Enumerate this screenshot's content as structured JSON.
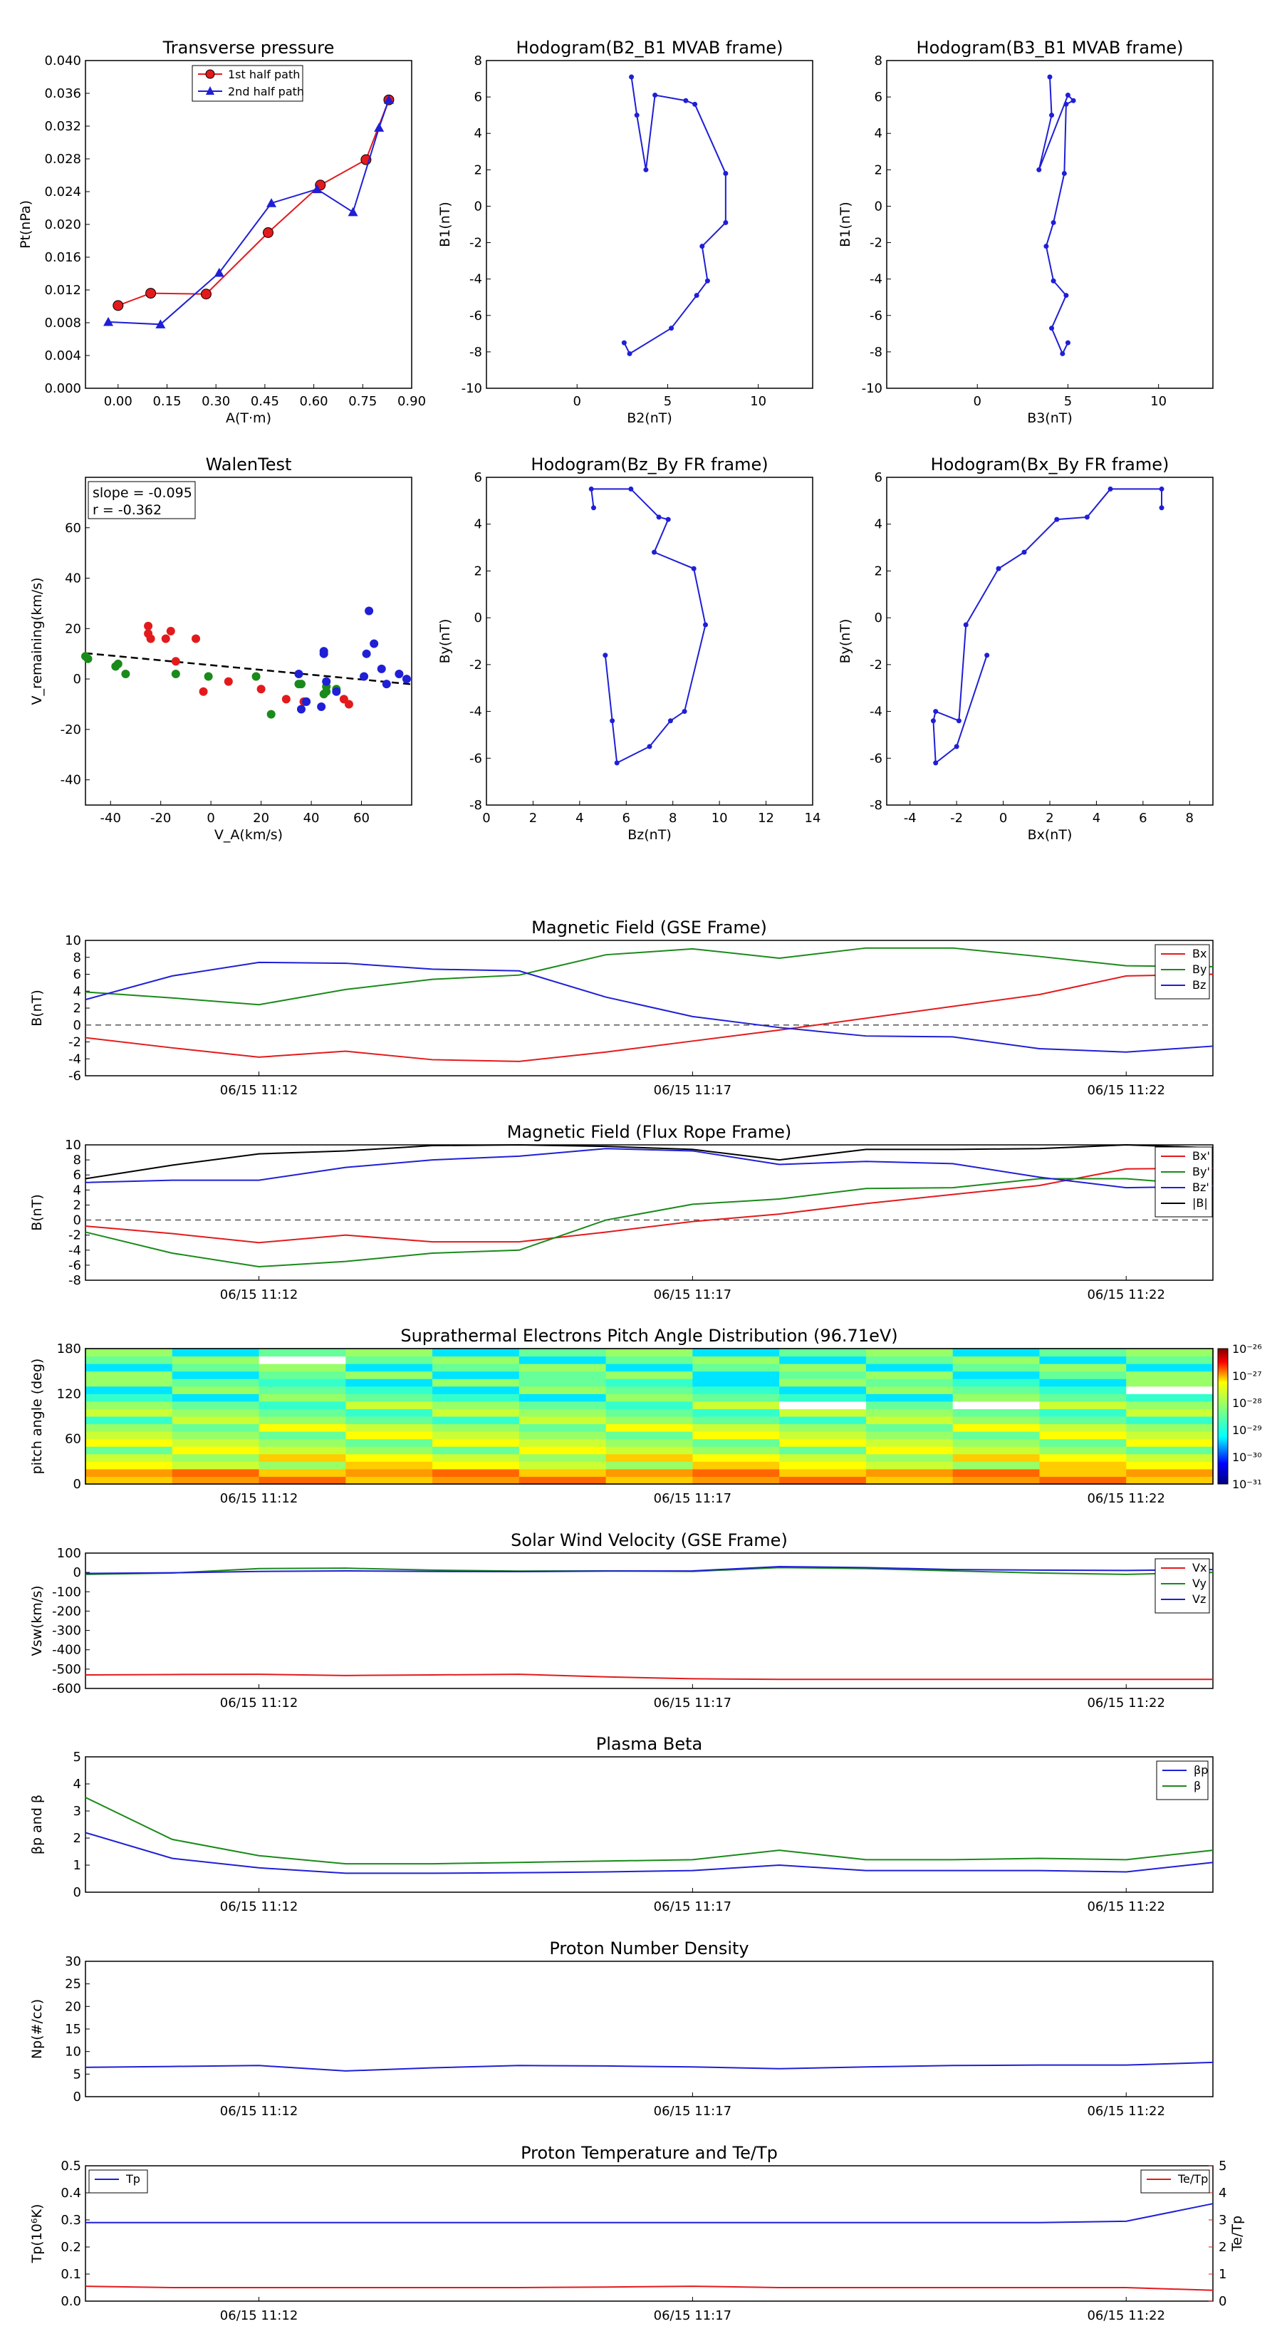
{
  "colors": {
    "red": "#e31a1c",
    "green": "#1a8a1a",
    "blue": "#1f1fd6",
    "black": "#000000"
  },
  "panels": {
    "transverse_pressure": {
      "title": "Transverse pressure",
      "xlabel": "A(T·m)",
      "ylabel": "Pt(nPa)",
      "xlim": [
        -0.1,
        0.9
      ],
      "ylim": [
        0,
        0.04
      ],
      "xticks": [
        "0.00",
        "0.15",
        "0.30",
        "0.45",
        "0.60",
        "0.75",
        "0.90"
      ],
      "yticks": [
        "0.000",
        "0.004",
        "0.008",
        "0.012",
        "0.016",
        "0.020",
        "0.024",
        "0.028",
        "0.032",
        "0.036",
        "0.040"
      ],
      "legend": [
        "1st half path",
        "2nd half path"
      ],
      "series1": {
        "x": [
          0.0,
          0.1,
          0.27,
          0.46,
          0.62,
          0.76,
          0.83
        ],
        "y": [
          0.0101,
          0.0116,
          0.0115,
          0.019,
          0.0248,
          0.0279,
          0.0352
        ]
      },
      "series2": {
        "x": [
          -0.03,
          0.13,
          0.31,
          0.47,
          0.61,
          0.72,
          0.8,
          0.83
        ],
        "y": [
          0.0081,
          0.0078,
          0.0141,
          0.0226,
          0.0243,
          0.0215,
          0.0318,
          0.0352
        ]
      }
    },
    "hodo_b2b1": {
      "title": "Hodogram(B2_B1 MVAB frame)",
      "xlabel": "B2(nT)",
      "ylabel": "B1(nT)",
      "xlim": [
        -5,
        13
      ],
      "ylim": [
        -10,
        8
      ],
      "xticks": [
        "0",
        "5",
        "10"
      ],
      "yticks": [
        "-10",
        "-8",
        "-6",
        "-4",
        "-2",
        "0",
        "2",
        "4",
        "6",
        "8"
      ],
      "x": [
        3.0,
        3.3,
        3.8,
        4.3,
        6.0,
        6.5,
        8.2,
        8.2,
        6.9,
        7.2,
        6.6,
        5.2,
        2.9,
        2.6
      ],
      "y": [
        7.1,
        5.0,
        2.0,
        6.1,
        5.8,
        5.6,
        1.8,
        -0.9,
        -2.2,
        -4.1,
        -4.9,
        -6.7,
        -8.1,
        -7.5
      ]
    },
    "hodo_b3b1": {
      "title": "Hodogram(B3_B1 MVAB frame)",
      "xlabel": "B3(nT)",
      "ylabel": "B1(nT)",
      "xlim": [
        -5,
        13
      ],
      "ylim": [
        -10,
        8
      ],
      "xticks": [
        "0",
        "5",
        "10"
      ],
      "yticks": [
        "-10",
        "-8",
        "-6",
        "-4",
        "-2",
        "0",
        "2",
        "4",
        "6",
        "8"
      ],
      "x": [
        4.0,
        4.1,
        3.4,
        5.0,
        5.3,
        4.9,
        4.8,
        4.2,
        3.8,
        4.2,
        4.9,
        4.1,
        4.7,
        5.0
      ],
      "y": [
        7.1,
        5.0,
        2.0,
        6.1,
        5.8,
        5.6,
        1.8,
        -0.9,
        -2.2,
        -4.1,
        -4.9,
        -6.7,
        -8.1,
        -7.5
      ]
    },
    "walen": {
      "title": "WalenTest",
      "xlabel": "V_A(km/s)",
      "ylabel": "V_remaining(km/s)",
      "xlim": [
        -50,
        80
      ],
      "ylim": [
        -50,
        80
      ],
      "xticks": [
        "-40",
        "-20",
        "0",
        "20",
        "40",
        "60"
      ],
      "yticks": [
        "-40",
        "-20",
        "0",
        "20",
        "40",
        "60"
      ],
      "slope_text": "slope = -0.095",
      "r_text": "r = -0.362",
      "fit": {
        "slope": -0.095,
        "intercept": 5.5
      },
      "red_x": [
        -25,
        -25,
        -24,
        -18,
        -16,
        -14,
        -6,
        -3,
        7,
        20,
        30,
        37,
        53,
        55
      ],
      "red_y": [
        21,
        18,
        16,
        16,
        19,
        7,
        16,
        -5,
        -1,
        -4,
        -8,
        -9,
        -8,
        -10
      ],
      "green_x": [
        -50,
        -49,
        -38,
        -37,
        -34,
        -14,
        -1,
        18,
        24,
        35,
        36,
        38,
        45,
        46,
        46,
        50
      ],
      "green_y": [
        9,
        8,
        5,
        6,
        2,
        2,
        1,
        1,
        -14,
        -2,
        -2,
        -9,
        -6,
        -3,
        -5,
        -4
      ],
      "blue_x": [
        35,
        36,
        38,
        44,
        45,
        45,
        46,
        50,
        61,
        62,
        63,
        65,
        68,
        70,
        75,
        78
      ],
      "blue_y": [
        2,
        -12,
        -9,
        -11,
        10,
        11,
        -1,
        -5,
        1,
        10,
        27,
        14,
        4,
        -2,
        2,
        0
      ]
    },
    "hodo_bzby": {
      "title": "Hodogram(Bz_By FR frame)",
      "xlabel": "Bz(nT)",
      "ylabel": "By(nT)",
      "xlim": [
        0,
        14
      ],
      "ylim": [
        -8,
        6
      ],
      "xticks": [
        "0",
        "2",
        "4",
        "6",
        "8",
        "10",
        "12",
        "14"
      ],
      "yticks": [
        "-8",
        "-6",
        "-4",
        "-2",
        "0",
        "2",
        "4",
        "6"
      ],
      "x": [
        4.6,
        4.5,
        6.2,
        7.4,
        7.8,
        7.2,
        8.9,
        9.4,
        8.5,
        7.9,
        7.0,
        5.6,
        5.4,
        5.1
      ],
      "y": [
        4.7,
        5.5,
        5.5,
        4.3,
        4.2,
        2.8,
        2.1,
        -0.3,
        -4.0,
        -4.4,
        -5.5,
        -6.2,
        -4.4,
        -1.6
      ]
    },
    "hodo_bxby": {
      "title": "Hodogram(Bx_By FR frame)",
      "xlabel": "Bx(nT)",
      "ylabel": "By(nT)",
      "xlim": [
        -5,
        9
      ],
      "ylim": [
        -8,
        6
      ],
      "xticks": [
        "-4",
        "-2",
        "0",
        "2",
        "4",
        "6",
        "8"
      ],
      "yticks": [
        "-8",
        "-6",
        "-4",
        "-2",
        "0",
        "2",
        "4",
        "6"
      ],
      "x": [
        6.8,
        6.8,
        4.6,
        3.6,
        2.3,
        0.9,
        -0.2,
        -1.6,
        -1.9,
        -2.9,
        -3.0,
        -2.9,
        -2.0,
        -0.7
      ],
      "y": [
        4.7,
        5.5,
        5.5,
        4.3,
        4.2,
        2.8,
        2.1,
        -0.3,
        -4.4,
        -4.0,
        -4.4,
        -6.2,
        -5.5,
        -1.6
      ]
    },
    "time_axis": {
      "ticks": [
        "06/15 11:12",
        "06/15 11:17",
        "06/15 11:22"
      ],
      "tick_index": [
        2,
        7,
        12
      ],
      "n": 14
    },
    "mag_gse": {
      "title": "Magnetic Field (GSE Frame)",
      "ylabel": "B(nT)",
      "ylim": [
        -6,
        10
      ],
      "yticks": [
        "-6",
        "-4",
        "-2",
        "0",
        "2",
        "4",
        "6",
        "8",
        "10"
      ],
      "legend": [
        "Bx",
        "By",
        "Bz"
      ],
      "bx": [
        -1.5,
        -2.7,
        -3.8,
        -3.1,
        -4.1,
        -4.3,
        -3.2,
        -1.9,
        -0.6,
        0.8,
        2.2,
        3.6,
        5.8,
        6.0
      ],
      "by": [
        3.9,
        3.2,
        2.4,
        4.2,
        5.4,
        5.9,
        8.3,
        9.0,
        7.9,
        9.1,
        9.1,
        8.1,
        7.0,
        6.9
      ],
      "bz": [
        3.0,
        5.8,
        7.4,
        7.3,
        6.6,
        6.4,
        3.3,
        1.0,
        -0.3,
        -1.3,
        -1.4,
        -2.8,
        -3.2,
        -2.5
      ]
    },
    "mag_fr": {
      "title": "Magnetic Field (Flux Rope Frame)",
      "ylabel": "B(nT)",
      "ylim": [
        -8,
        10
      ],
      "yticks": [
        "-8",
        "-6",
        "-4",
        "-2",
        "0",
        "2",
        "4",
        "6",
        "8",
        "10"
      ],
      "legend": [
        "Bx'",
        "By'",
        "Bz'",
        "|B|"
      ],
      "bx": [
        -0.8,
        -1.8,
        -3.0,
        -2.0,
        -2.9,
        -2.9,
        -1.6,
        -0.2,
        0.8,
        2.2,
        3.4,
        4.6,
        6.8,
        6.9
      ],
      "by": [
        -1.6,
        -4.4,
        -6.2,
        -5.5,
        -4.4,
        -4.0,
        0.0,
        2.1,
        2.8,
        4.2,
        4.3,
        5.5,
        5.5,
        4.6
      ],
      "bz": [
        5.0,
        5.3,
        5.3,
        7.0,
        8.0,
        8.5,
        9.5,
        9.2,
        7.4,
        7.8,
        7.5,
        5.7,
        4.3,
        4.5
      ],
      "bt": [
        5.5,
        7.3,
        8.8,
        9.2,
        9.9,
        10.0,
        9.8,
        9.4,
        8.0,
        9.4,
        9.4,
        9.5,
        10.0,
        9.6
      ]
    },
    "pad": {
      "title": "Suprathermal Electrons Pitch Angle Distribution (96.71eV)",
      "ylabel": "pitch angle (deg)",
      "ylim": [
        0,
        180
      ],
      "yticks": [
        "0",
        "60",
        "120",
        "180"
      ],
      "cbar_ticks": [
        "10⁻²⁶",
        "10⁻²⁷",
        "10⁻²⁸",
        "10⁻²⁹",
        "10⁻³⁰",
        "10⁻³¹"
      ]
    },
    "vsw": {
      "title": "Solar Wind Velocity (GSE Frame)",
      "ylabel": "Vsw(km/s)",
      "ylim": [
        -600,
        100
      ],
      "yticks": [
        "-600",
        "-500",
        "-400",
        "-300",
        "-200",
        "-100",
        "0",
        "100"
      ],
      "legend": [
        "Vx",
        "Vy",
        "Vz"
      ],
      "vx": [
        -530,
        -528,
        -527,
        -533,
        -530,
        -527,
        -540,
        -550,
        -553,
        -553,
        -553,
        -553,
        -553,
        -553
      ],
      "vy": [
        -10,
        -3,
        20,
        22,
        12,
        7,
        8,
        5,
        25,
        20,
        8,
        -3,
        -10,
        0
      ],
      "vz": [
        -5,
        -2,
        5,
        8,
        5,
        4,
        7,
        8,
        30,
        25,
        15,
        12,
        10,
        15
      ]
    },
    "beta": {
      "title": "Plasma Beta",
      "ylabel": "βp and β",
      "ylim": [
        0,
        5
      ],
      "yticks": [
        "0",
        "1",
        "2",
        "3",
        "4",
        "5"
      ],
      "legend": [
        "βp",
        "β"
      ],
      "bp": [
        2.2,
        1.25,
        0.9,
        0.7,
        0.7,
        0.72,
        0.75,
        0.8,
        1.0,
        0.8,
        0.8,
        0.8,
        0.75,
        1.1
      ],
      "b": [
        3.5,
        1.95,
        1.35,
        1.05,
        1.05,
        1.1,
        1.15,
        1.2,
        1.55,
        1.2,
        1.2,
        1.25,
        1.2,
        1.55
      ]
    },
    "density": {
      "title": "Proton Number Density",
      "ylabel": "Np(#/cc)",
      "ylim": [
        0,
        30
      ],
      "yticks": [
        "0",
        "5",
        "10",
        "15",
        "20",
        "25",
        "30"
      ],
      "np": [
        6.5,
        6.7,
        6.9,
        5.7,
        6.4,
        6.9,
        6.8,
        6.6,
        6.2,
        6.6,
        6.9,
        7.0,
        7.0,
        7.6
      ]
    },
    "temp": {
      "title": "Proton Temperature and Te/Tp",
      "ylabel": "Tp(10⁶K)",
      "ylim": [
        0,
        0.5
      ],
      "yticks": [
        "0.0",
        "0.1",
        "0.2",
        "0.3",
        "0.4",
        "0.5"
      ],
      "ylabel2": "Te/Tp",
      "ylim2": [
        0,
        5
      ],
      "yticks2": [
        "0",
        "1",
        "2",
        "3",
        "4",
        "5"
      ],
      "legend": [
        "Tp",
        "Te/Tp"
      ],
      "tp": [
        0.29,
        0.29,
        0.29,
        0.29,
        0.29,
        0.29,
        0.29,
        0.29,
        0.29,
        0.29,
        0.29,
        0.29,
        0.295,
        0.36
      ],
      "tetp": [
        0.55,
        0.5,
        0.5,
        0.5,
        0.5,
        0.5,
        0.52,
        0.55,
        0.5,
        0.5,
        0.5,
        0.5,
        0.5,
        0.4
      ]
    }
  }
}
